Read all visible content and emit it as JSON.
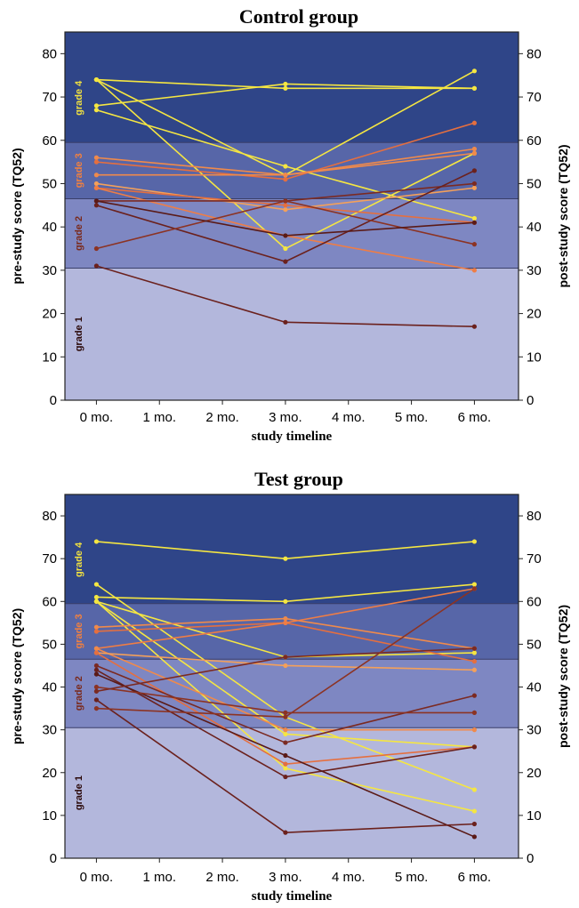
{
  "chart_data": [
    {
      "type": "line",
      "title": "Control group",
      "xlabel": "study timeline",
      "ylabel_left": "pre-study score (TQ52)",
      "ylabel_right": "post-study score (TQ52)",
      "ylim": [
        0,
        85
      ],
      "yticks": [
        0,
        10,
        20,
        30,
        40,
        50,
        60,
        70,
        80
      ],
      "x_ticks": [
        "0 mo.",
        "1 mo.",
        "2 mo.",
        "3 mo.",
        "4 mo.",
        "5 mo.",
        "6 mo."
      ],
      "x": [
        0,
        3,
        6
      ],
      "bands": [
        {
          "label": "grade 1",
          "from": 0,
          "to": 30.5,
          "color": "#b3b7dc",
          "label_color": "#2a0808"
        },
        {
          "label": "grade 2",
          "from": 30.5,
          "to": 46.5,
          "color": "#7e87c2",
          "label_color": "#7a2a1c"
        },
        {
          "label": "grade 3",
          "from": 46.5,
          "to": 59.5,
          "color": "#5766a8",
          "label_color": "#f08040"
        },
        {
          "label": "grade 4",
          "from": 59.5,
          "to": 85,
          "color": "#2f4588",
          "label_color": "#f0e040"
        }
      ],
      "series": [
        {
          "values": [
            74,
            52,
            76
          ],
          "color": "#f5e642"
        },
        {
          "values": [
            68,
            73,
            72
          ],
          "color": "#f5e642"
        },
        {
          "values": [
            67,
            54,
            42
          ],
          "color": "#f5e642"
        },
        {
          "values": [
            74,
            35,
            57
          ],
          "color": "#f5e642"
        },
        {
          "values": [
            74,
            72,
            72
          ],
          "color": "#f5e642"
        },
        {
          "values": [
            56,
            52,
            58
          ],
          "color": "#f08a4b"
        },
        {
          "values": [
            55,
            51,
            64
          ],
          "color": "#e56f3f"
        },
        {
          "values": [
            52,
            52,
            57
          ],
          "color": "#f08a4b"
        },
        {
          "values": [
            50,
            44,
            49
          ],
          "color": "#f4a05a"
        },
        {
          "values": [
            49,
            45,
            41
          ],
          "color": "#e56f3f"
        },
        {
          "values": [
            49,
            38,
            30
          ],
          "color": "#ef7d45"
        },
        {
          "values": [
            46,
            46,
            50
          ],
          "color": "#7b2a22"
        },
        {
          "values": [
            45,
            32,
            53
          ],
          "color": "#6b211d"
        },
        {
          "values": [
            35,
            46,
            36
          ],
          "color": "#8c3323"
        },
        {
          "values": [
            46,
            38,
            41
          ],
          "color": "#5a1a17"
        },
        {
          "values": [
            31,
            18,
            17
          ],
          "color": "#6b211d"
        }
      ]
    },
    {
      "type": "line",
      "title": "Test group",
      "xlabel": "study timeline",
      "ylabel_left": "pre-study score (TQ52)",
      "ylabel_right": "post-study score (TQ52)",
      "ylim": [
        0,
        85
      ],
      "yticks": [
        0,
        10,
        20,
        30,
        40,
        50,
        60,
        70,
        80
      ],
      "x_ticks": [
        "0 mo.",
        "1 mo.",
        "2 mo.",
        "3 mo.",
        "4 mo.",
        "5 mo.",
        "6 mo."
      ],
      "x": [
        0,
        3,
        6
      ],
      "bands": [
        {
          "label": "grade 1",
          "from": 0,
          "to": 30.5,
          "color": "#b3b7dc",
          "label_color": "#2a0808"
        },
        {
          "label": "grade 2",
          "from": 30.5,
          "to": 46.5,
          "color": "#7e87c2",
          "label_color": "#7a2a1c"
        },
        {
          "label": "grade 3",
          "from": 46.5,
          "to": 59.5,
          "color": "#5766a8",
          "label_color": "#f08040"
        },
        {
          "label": "grade 4",
          "from": 59.5,
          "to": 85,
          "color": "#2f4588",
          "label_color": "#f0e040"
        }
      ],
      "series": [
        {
          "values": [
            74,
            70,
            74
          ],
          "color": "#f5e642"
        },
        {
          "values": [
            61,
            60,
            64
          ],
          "color": "#f5e642"
        },
        {
          "values": [
            64,
            33,
            16
          ],
          "color": "#f5e642"
        },
        {
          "values": [
            60,
            29,
            26
          ],
          "color": "#f5e642"
        },
        {
          "values": [
            60,
            21,
            11
          ],
          "color": "#f5e642"
        },
        {
          "values": [
            60,
            47,
            48
          ],
          "color": "#f5e642"
        },
        {
          "values": [
            54,
            56,
            49
          ],
          "color": "#f08a4b"
        },
        {
          "values": [
            53,
            55,
            46
          ],
          "color": "#e56f3f"
        },
        {
          "values": [
            49,
            55,
            63
          ],
          "color": "#ef7d45"
        },
        {
          "values": [
            49,
            30,
            30
          ],
          "color": "#f08a4b"
        },
        {
          "values": [
            48,
            45,
            44
          ],
          "color": "#f4a05a"
        },
        {
          "values": [
            48,
            22,
            26
          ],
          "color": "#e56f3f"
        },
        {
          "values": [
            45,
            27,
            38
          ],
          "color": "#7b2a22"
        },
        {
          "values": [
            44,
            19,
            26
          ],
          "color": "#6b211d"
        },
        {
          "values": [
            43,
            24,
            5
          ],
          "color": "#5a1a17"
        },
        {
          "values": [
            40,
            34,
            34
          ],
          "color": "#8c3323"
        },
        {
          "values": [
            39,
            47,
            49
          ],
          "color": "#7b2a22"
        },
        {
          "values": [
            37,
            6,
            8
          ],
          "color": "#6b211d"
        },
        {
          "values": [
            35,
            33,
            63
          ],
          "color": "#8c3323"
        }
      ]
    }
  ]
}
